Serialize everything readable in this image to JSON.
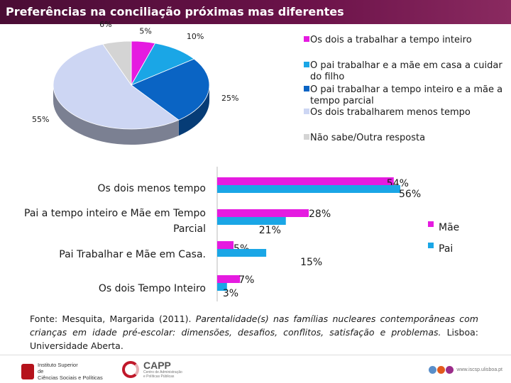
{
  "title": "Preferências na conciliação próximas mas diferentes",
  "chart_data": [
    {
      "type": "pie",
      "style": "3d",
      "title": "",
      "slices": [
        {
          "label": "Os dois a trabalhar a tempo inteiro",
          "value": 5,
          "value_label": "5%",
          "color": "#e51be0"
        },
        {
          "label": "O pai trabalhar e a mãe em casa a cuidar do filho",
          "value": 10,
          "value_label": "10%",
          "color": "#1aa6e6"
        },
        {
          "label": "O pai trabalhar a tempo inteiro e a mãe a tempo parcial",
          "value": 25,
          "value_label": "25%",
          "color": "#0a64c4"
        },
        {
          "label": "Os dois trabalharem menos tempo",
          "value": 55,
          "value_label": "55%",
          "color": "#cdd6f3"
        },
        {
          "label": "Não sabe/Outra resposta",
          "value": 6,
          "value_label": "6%",
          "color": "#d4d4d4"
        }
      ],
      "legend": {
        "position": "right",
        "items": [
          "Os dois a trabalhar a tempo inteiro",
          "O pai trabalhar e a mãe em casa a cuidar do filho",
          "O pai trabalhar a tempo inteiro e a mãe a tempo parcial",
          "Os dois trabalharem menos tempo",
          "Não sabe/Outra resposta"
        ],
        "wrapped": [
          [
            "Os dois a trabalhar a tempo inteiro"
          ],
          [
            "O pai trabalhar e a mãe em casa a cuidar",
            "do filho"
          ],
          [
            "O pai trabalhar a tempo inteiro e a mãe a",
            "tempo parcial"
          ],
          [
            "Os dois trabalharem menos tempo"
          ],
          [
            "Não sabe/Outra  resposta"
          ]
        ]
      }
    },
    {
      "type": "bar",
      "orientation": "horizontal",
      "title": "",
      "categories": [
        "Os dois menos tempo",
        "Pai a tempo inteiro e Mãe em Tempo Parcial",
        "Pai Trabalhar e Mãe em Casa.",
        "Os dois Tempo Inteiro"
      ],
      "category_lines": [
        [
          "Os dois menos tempo"
        ],
        [
          "Pai a tempo inteiro e Mãe em Tempo",
          "Parcial"
        ],
        [
          "Pai Trabalhar e Mãe em Casa."
        ],
        [
          "Os dois Tempo Inteiro"
        ]
      ],
      "series": [
        {
          "name": "Mãe",
          "color": "#e51be0",
          "values": [
            54,
            28,
            5,
            7
          ],
          "labels": [
            "54%",
            "28%",
            "5%",
            "7%"
          ]
        },
        {
          "name": "Pai",
          "color": "#1aa6e6",
          "values": [
            56,
            21,
            15,
            3
          ],
          "labels": [
            "56%",
            "21%",
            "15%",
            "3%"
          ]
        }
      ],
      "xlim": [
        0,
        60
      ],
      "legend": {
        "position": "right",
        "items": [
          "Mãe",
          "Pai"
        ]
      }
    }
  ],
  "source": {
    "prefix": "Fonte: Mesquita, Margarida (2011). ",
    "title": "Parentalidade(s) nas famílias nucleares contemporâneas com crianças em idade pré-escolar: dimensões, desafios, conflitos, satisfação e problemas.",
    "suffix": " Lisboa: Universidade Aberta."
  },
  "footer": {
    "iscsp_line1": "Instituto Superior",
    "iscsp_line2": "de",
    "iscsp_line3": "Ciências Sociais e Políticas",
    "capp_name": "CAPP",
    "capp_sub1": "Centro de Administração",
    "capp_sub2": "e Políticas Públicas",
    "site_url": "www.iscsp.ulisboa.pt",
    "dot_colors": [
      "#5a8ec9",
      "#e25a1c",
      "#9b2c8a"
    ]
  }
}
